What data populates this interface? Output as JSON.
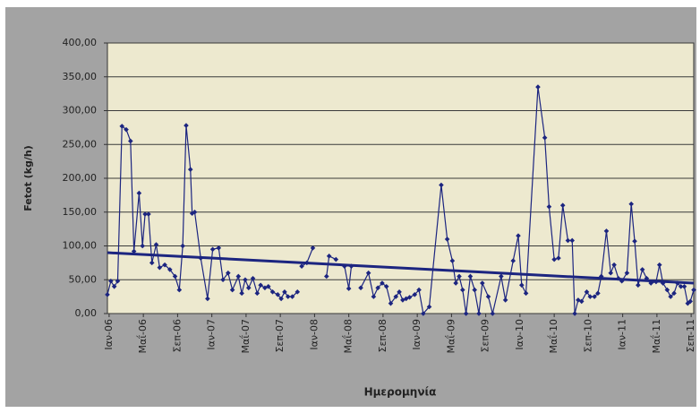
{
  "chart_data": {
    "type": "line",
    "y_label": "Fetot (kg/h)",
    "x_label": "Ημερομηνία",
    "xlim": [
      -0.2,
      68.3
    ],
    "xticks": [
      {
        "value": 0,
        "label": "Ιαν-06"
      },
      {
        "value": 4,
        "label": "Μαΐ-06"
      },
      {
        "value": 8,
        "label": "Σεπ-06"
      },
      {
        "value": 12,
        "label": "Ιαν-07"
      },
      {
        "value": 16,
        "label": "Μαΐ-07"
      },
      {
        "value": 20,
        "label": "Σεπ-07"
      },
      {
        "value": 24,
        "label": "Ιαν-08"
      },
      {
        "value": 28,
        "label": "Μαΐ-08"
      },
      {
        "value": 32,
        "label": "Σεπ-08"
      },
      {
        "value": 36,
        "label": "Ιαν-09"
      },
      {
        "value": 40,
        "label": "Μαΐ-09"
      },
      {
        "value": 44,
        "label": "Σεπ-09"
      },
      {
        "value": 48,
        "label": "Ιαν-10"
      },
      {
        "value": 52,
        "label": "Μαΐ-10"
      },
      {
        "value": 56,
        "label": "Σεπ-10"
      },
      {
        "value": 60,
        "label": "Ιαν-11"
      },
      {
        "value": 64,
        "label": "Μαΐ-11"
      },
      {
        "value": 68,
        "label": "Σεπ-11"
      }
    ],
    "ylim": [
      0,
      400
    ],
    "yticks": [
      {
        "value": 0,
        "label": "0,00"
      },
      {
        "value": 50,
        "label": "50,00"
      },
      {
        "value": 100,
        "label": "100,00"
      },
      {
        "value": 150,
        "label": "150,00"
      },
      {
        "value": 200,
        "label": "200,00"
      },
      {
        "value": 250,
        "label": "250,00"
      },
      {
        "value": 300,
        "label": "300,00"
      },
      {
        "value": 350,
        "label": "350,00"
      },
      {
        "value": 400,
        "label": "400,00"
      }
    ],
    "grid": true,
    "series": [
      {
        "color": "#1c2580",
        "x": [
          -0.2,
          0.2,
          0.6,
          1.0,
          1.5,
          2.0,
          2.5,
          2.9,
          3.5,
          3.9,
          4.2,
          4.6,
          5.0,
          5.5,
          5.9,
          6.5,
          7.1,
          7.7,
          8.2,
          8.6,
          9.0,
          9.5,
          9.7,
          10.0,
          10.7,
          11.5,
          12.1,
          12.8,
          13.3,
          13.9,
          14.4,
          15.1,
          15.5,
          15.9,
          16.3,
          16.8,
          17.3,
          17.7,
          18.2,
          18.6,
          19.1,
          19.7,
          20.1,
          20.5,
          20.9,
          21.4,
          22.0,
          null,
          22.5,
          23.1,
          23.8,
          null,
          25.4,
          25.7,
          26.5,
          null,
          27.5,
          28.0,
          28.3,
          null,
          29.4,
          30.3,
          30.9,
          31.4,
          31.9,
          32.4,
          32.9,
          33.5,
          33.9,
          34.3,
          34.7,
          35.1,
          35.7,
          36.2,
          36.7,
          37.4,
          38.8,
          39.5,
          40.1,
          40.5,
          40.9,
          41.3,
          41.7,
          42.2,
          42.7,
          43.2,
          43.6,
          44.3,
          44.8,
          45.8,
          46.3,
          47.2,
          47.8,
          48.2,
          48.7,
          50.1,
          50.9,
          51.4,
          52.0,
          52.5,
          53.0,
          53.6,
          54.1,
          54.4,
          54.8,
          55.2,
          55.8,
          56.2,
          56.7,
          57.1,
          57.5,
          58.1,
          58.6,
          59.0,
          59.5,
          59.9,
          60.5,
          61.0,
          61.4,
          61.8,
          62.3,
          62.8,
          63.3,
          63.9,
          64.3,
          64.7,
          65.2,
          65.6,
          66.0,
          66.4,
          66.8,
          67.2,
          67.6,
          67.9,
          68.3
        ],
        "values": [
          28,
          48,
          40,
          48,
          277,
          272,
          255,
          92,
          178,
          100,
          147,
          147,
          75,
          102,
          68,
          72,
          65,
          55,
          35,
          100,
          278,
          213,
          148,
          150,
          82,
          22,
          95,
          97,
          50,
          60,
          35,
          55,
          30,
          50,
          38,
          52,
          30,
          42,
          38,
          40,
          32,
          28,
          22,
          32,
          25,
          25,
          32,
          null,
          70,
          75,
          97,
          null,
          55,
          85,
          80,
          null,
          70,
          37,
          70,
          null,
          38,
          60,
          25,
          38,
          45,
          40,
          15,
          25,
          32,
          20,
          22,
          24,
          28,
          35,
          0,
          10,
          190,
          110,
          78,
          45,
          55,
          35,
          0,
          55,
          35,
          0,
          45,
          25,
          0,
          55,
          20,
          78,
          115,
          42,
          30,
          335,
          260,
          158,
          80,
          82,
          160,
          108,
          108,
          0,
          20,
          18,
          32,
          25,
          25,
          30,
          55,
          122,
          60,
          72,
          52,
          48,
          60,
          162,
          107,
          42,
          65,
          52,
          45,
          47,
          72,
          45,
          35,
          25,
          30,
          45,
          40,
          40,
          15,
          18,
          35
        ]
      }
    ],
    "trendline": {
      "color": "#1c2580",
      "x": [
        -0.2,
        68.3
      ],
      "values": [
        90,
        45
      ]
    }
  }
}
